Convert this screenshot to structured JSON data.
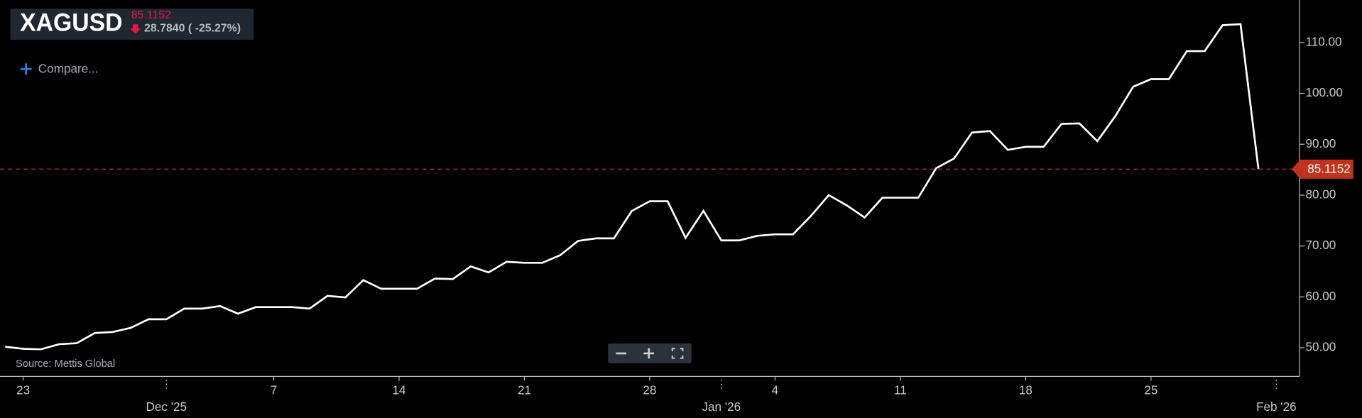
{
  "chart_data": {
    "type": "line",
    "title": "XAGUSD",
    "change": "28.7840",
    "change_pct": "( -25.27%)",
    "compare_label": "Compare...",
    "source": "Source: Mettis Global",
    "x": [
      "2025-11-22",
      "2025-11-23",
      "2025-11-24",
      "2025-11-25",
      "2025-11-26",
      "2025-11-27",
      "2025-11-28",
      "2025-11-29",
      "2025-11-30",
      "2025-12-01",
      "2025-12-02",
      "2025-12-03",
      "2025-12-04",
      "2025-12-05",
      "2025-12-06",
      "2025-12-07",
      "2025-12-08",
      "2025-12-09",
      "2025-12-10",
      "2025-12-11",
      "2025-12-12",
      "2025-12-13",
      "2025-12-14",
      "2025-12-15",
      "2025-12-16",
      "2025-12-17",
      "2025-12-18",
      "2025-12-19",
      "2025-12-20",
      "2025-12-21",
      "2025-12-22",
      "2025-12-23",
      "2025-12-24",
      "2025-12-25",
      "2025-12-26",
      "2025-12-27",
      "2025-12-28",
      "2025-12-29",
      "2025-12-30",
      "2025-12-31",
      "2026-01-01",
      "2026-01-02",
      "2026-01-03",
      "2026-01-04",
      "2026-01-05",
      "2026-01-06",
      "2026-01-07",
      "2026-01-08",
      "2026-01-09",
      "2026-01-10",
      "2026-01-11",
      "2026-01-12",
      "2026-01-13",
      "2026-01-14",
      "2026-01-15",
      "2026-01-16",
      "2026-01-17",
      "2026-01-18",
      "2026-01-19",
      "2026-01-20",
      "2026-01-21",
      "2026-01-22",
      "2026-01-23",
      "2026-01-24",
      "2026-01-25",
      "2026-01-26",
      "2026-01-27",
      "2026-01-28",
      "2026-01-29",
      "2026-01-30",
      "2026-01-31"
    ],
    "series": [
      {
        "name": "XAGUSD",
        "color": "#ffffff",
        "values": [
          50.2,
          49.8,
          49.7,
          50.7,
          50.9,
          52.9,
          53.1,
          53.9,
          55.6,
          55.6,
          57.7,
          57.7,
          58.2,
          56.7,
          58.0,
          58.0,
          58.0,
          57.7,
          60.2,
          59.9,
          63.3,
          61.6,
          61.6,
          61.6,
          63.6,
          63.5,
          66.0,
          64.8,
          66.9,
          66.7,
          66.7,
          68.2,
          71.0,
          71.5,
          71.5,
          76.9,
          78.8,
          78.8,
          71.6,
          76.9,
          71.1,
          71.1,
          72.0,
          72.3,
          72.3,
          75.9,
          80.0,
          78.0,
          75.6,
          79.5,
          79.5,
          79.5,
          85.3,
          87.2,
          92.3,
          92.6,
          88.9,
          89.5,
          89.5,
          94.0,
          94.1,
          90.6,
          95.5,
          101.3,
          102.8,
          102.8,
          108.3,
          108.3,
          113.4,
          113.6,
          85.1152
        ]
      }
    ],
    "last_price_color": "#c0341d",
    "price_color": "#e8173c",
    "xlim": [
      "2025-11-21T17:00:00Z",
      "2026-02-02T07:00:00Z"
    ],
    "ylim": [
      44.38,
      118.35
    ],
    "yticks": [
      {
        "value": 50,
        "label": "50.00"
      },
      {
        "value": 60,
        "label": "60.00"
      },
      {
        "value": 70,
        "label": "70.00"
      },
      {
        "value": 80,
        "label": "80.00"
      },
      {
        "value": 90,
        "label": "90.00"
      },
      {
        "value": 100,
        "label": "100.00"
      },
      {
        "value": 110,
        "label": "110.00"
      }
    ],
    "xticks": [
      {
        "value": "2025-11-23",
        "label": "23"
      },
      {
        "value": "2025-12-07",
        "label": "7"
      },
      {
        "value": "2025-12-14",
        "label": "14"
      },
      {
        "value": "2025-12-21",
        "label": "21"
      },
      {
        "value": "2025-12-28",
        "label": "28"
      },
      {
        "value": "2026-01-04",
        "label": "4"
      },
      {
        "value": "2026-01-11",
        "label": "11"
      },
      {
        "value": "2026-01-18",
        "label": "18"
      },
      {
        "value": "2026-01-25",
        "label": "25"
      }
    ],
    "month_ticks": [
      {
        "value": "2025-12-01",
        "label": "Dec '25"
      },
      {
        "value": "2026-01-01",
        "label": "Jan '26"
      },
      {
        "value": "2026-02-01",
        "label": "Feb '26"
      }
    ]
  }
}
